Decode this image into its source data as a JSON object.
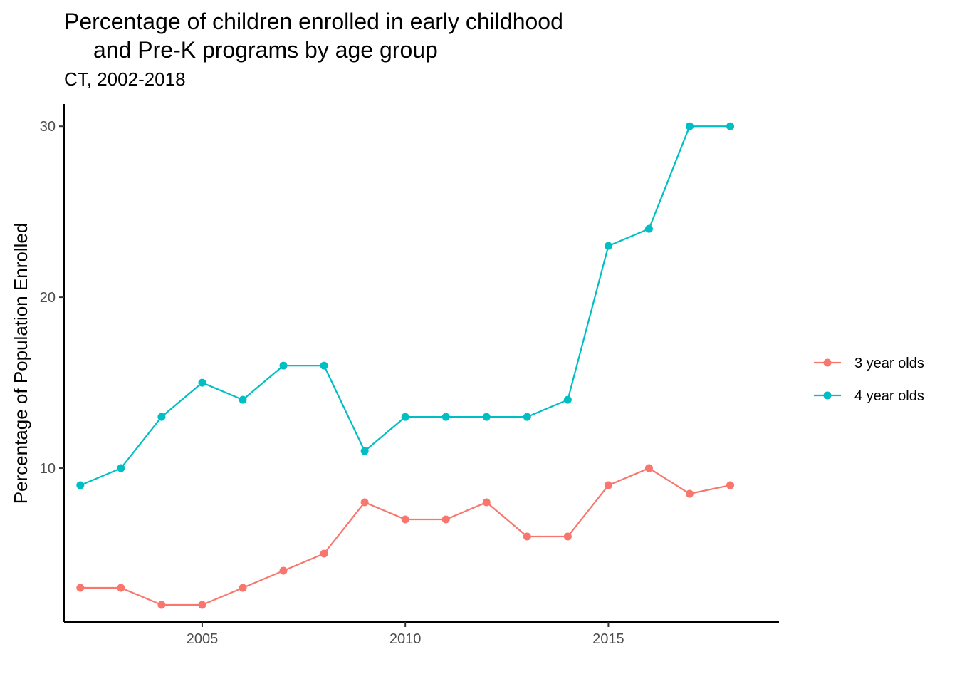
{
  "chart_data": {
    "type": "line",
    "title_lines": [
      "Percentage of children enrolled in early childhood",
      "and Pre-K programs by age group"
    ],
    "subtitle": "CT, 2002-2018",
    "xlabel": "",
    "ylabel": "Percentage of Population Enrolled",
    "x": [
      2002,
      2003,
      2004,
      2005,
      2006,
      2007,
      2008,
      2009,
      2010,
      2011,
      2012,
      2013,
      2014,
      2015,
      2016,
      2017,
      2018
    ],
    "xlim": [
      2001.6,
      2019.2
    ],
    "ylim": [
      1.0,
      31.3
    ],
    "xticks": [
      2005,
      2010,
      2015
    ],
    "yticks": [
      10,
      20,
      30
    ],
    "grid": false,
    "legend_position": "right",
    "series": [
      {
        "name": "3 year olds",
        "color": "#F8766D",
        "values": [
          3,
          3,
          2,
          2,
          3,
          4,
          5,
          8,
          7,
          7,
          8,
          6,
          6,
          9,
          10,
          8.5,
          9
        ]
      },
      {
        "name": "4 year olds",
        "color": "#00BFC4",
        "values": [
          9,
          10,
          13,
          15,
          14,
          16,
          16,
          11,
          13,
          13,
          13,
          13,
          14,
          23,
          24,
          30,
          30
        ]
      }
    ]
  }
}
